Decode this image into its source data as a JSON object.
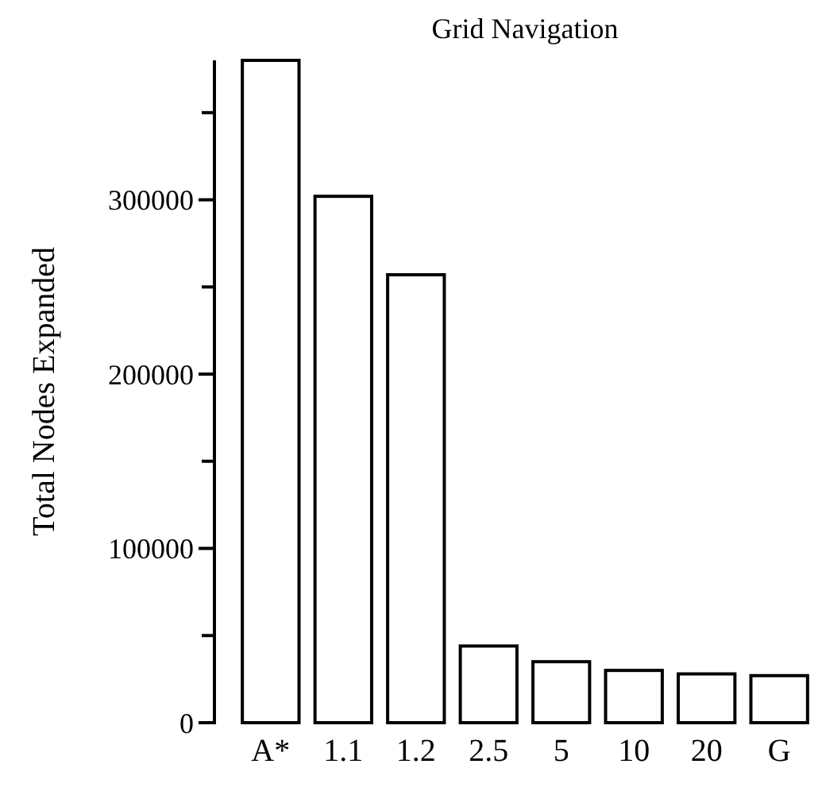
{
  "chart_data": {
    "type": "bar",
    "title": "Grid Navigation",
    "ylabel": "Total Nodes Expanded",
    "categories": [
      "A*",
      "1.1",
      "1.2",
      "2.5",
      "5",
      "10",
      "20",
      "G"
    ],
    "values": [
      380000,
      302000,
      257000,
      44000,
      35000,
      30000,
      28000,
      27000
    ],
    "color": "#ffffff",
    "ylim": [
      0,
      380000
    ],
    "yticks": [
      0,
      {
        "value": 50000,
        "label": null
      },
      100000,
      {
        "value": 150000,
        "label": null
      },
      200000,
      {
        "value": 250000,
        "label": null
      },
      300000,
      {
        "value": 350000,
        "label": null
      }
    ],
    "grid": false
  }
}
